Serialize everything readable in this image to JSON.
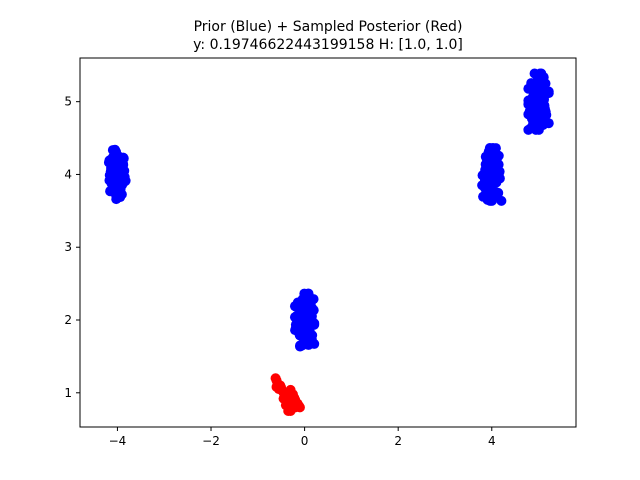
{
  "chart_data": {
    "type": "scatter",
    "title": "Prior (Blue) + Sampled Posterior (Red)",
    "subtitle": "y: 0.19746622443199158 H: [1.0, 1.0]",
    "xlabel": "",
    "ylabel": "",
    "xlim": [
      -4.8,
      5.8
    ],
    "ylim": [
      0.53,
      5.6
    ],
    "xticks": [
      -4,
      -2,
      0,
      2,
      4
    ],
    "xtick_labels": [
      "−4",
      "−2",
      "0",
      "2",
      "4"
    ],
    "yticks": [
      1,
      2,
      3,
      4,
      5
    ],
    "ytick_labels": [
      "1",
      "2",
      "3",
      "4",
      "5"
    ],
    "grid": false,
    "series": [
      {
        "color": "#0000ff",
        "clusters": [
          {
            "center": [
              -4.0,
              4.0
            ],
            "spread": [
              0.15,
              0.28
            ]
          },
          {
            "center": [
              0.0,
              2.0
            ],
            "spread": [
              0.17,
              0.3
            ]
          },
          {
            "center": [
              4.0,
              4.0
            ],
            "spread": [
              0.17,
              0.3
            ]
          },
          {
            "center": [
              5.0,
              5.0
            ],
            "spread": [
              0.18,
              0.32
            ]
          }
        ]
      },
      {
        "color": "#ff0000",
        "points": [
          [
            -0.62,
            1.2
          ],
          [
            -0.6,
            1.17
          ],
          [
            -0.58,
            1.13
          ],
          [
            -0.56,
            1.09
          ],
          [
            -0.55,
            1.05
          ],
          [
            -0.6,
            1.08
          ],
          [
            -0.52,
            1.1
          ],
          [
            -0.5,
            1.07
          ],
          [
            -0.45,
            1.0
          ],
          [
            -0.42,
            0.95
          ],
          [
            -0.4,
            0.9
          ],
          [
            -0.38,
            0.86
          ],
          [
            -0.35,
            0.82
          ],
          [
            -0.32,
            0.78
          ],
          [
            -0.3,
            0.75
          ],
          [
            -0.28,
            0.8
          ],
          [
            -0.3,
            0.88
          ],
          [
            -0.33,
            0.92
          ],
          [
            -0.37,
            0.96
          ],
          [
            -0.3,
            1.0
          ],
          [
            -0.3,
            1.04
          ],
          [
            -0.25,
            0.98
          ],
          [
            -0.22,
            0.93
          ],
          [
            -0.2,
            0.9
          ],
          [
            -0.18,
            0.87
          ],
          [
            -0.15,
            0.85
          ],
          [
            -0.12,
            0.82
          ],
          [
            -0.1,
            0.8
          ],
          [
            -0.25,
            0.85
          ],
          [
            -0.2,
            0.8
          ],
          [
            -0.35,
            0.75
          ],
          [
            -0.4,
            0.83
          ],
          [
            -0.45,
            0.92
          ],
          [
            -0.27,
            0.95
          ]
        ]
      }
    ]
  }
}
